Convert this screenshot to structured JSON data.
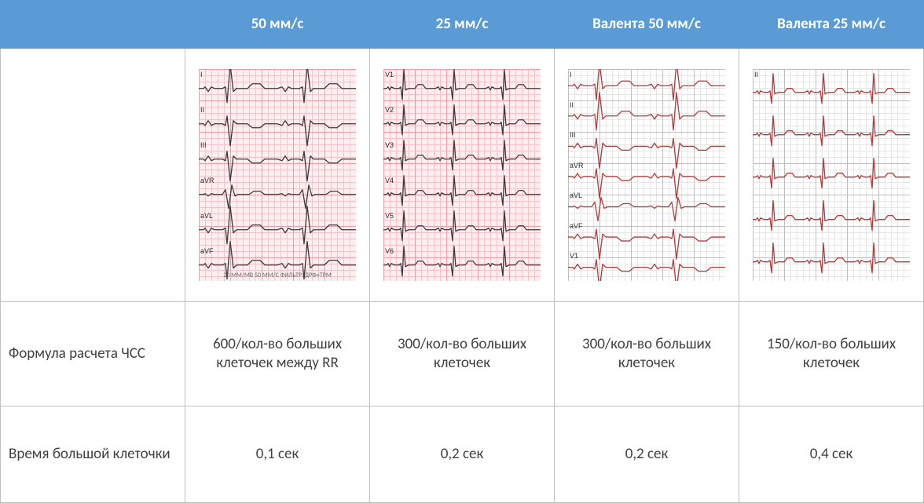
{
  "table": {
    "header": [
      "",
      "50 мм/с",
      "25 мм/с",
      "Валента 50 мм/с",
      "Валента 25 мм/с"
    ],
    "rows": [
      {
        "label": "Формула расчета ЧСС",
        "cells": [
          "600/кол-во больших клеточек между RR",
          "300/кол-во больших клеточек",
          "300/кол-во больших клеточек",
          "150/кол-во больших клеточек"
        ]
      },
      {
        "label": "Время большой клеточки",
        "cells": [
          "0,1 сек",
          "0,2 сек",
          "0,2 сек",
          "0,4 сек"
        ]
      }
    ]
  },
  "colors": {
    "header_bg": "#5b9bd5",
    "header_fg": "#ffffff",
    "cell_border": "#bfbfbf",
    "text": "#404040",
    "stroke_dark": "#3a3a3a",
    "stroke_red": "#b23b3b"
  },
  "waves": {
    "wide": "0,0 6,0 8,-2 12,4 16,-2 20,0 30,0 34,-2 36,18 40,-30 44,4 48,0 62,0 68,-6 78,-6 84,0 100,0 106,-2 110,4 114,-2 118,0 128,0 132,-2 134,18 138,-30 142,4 146,0 160,0 166,-6 176,-6 182,0 200,0",
    "narrow": "0,0 4,0 6,-2 8,2 10,-2 14,0 20,0 22,-2 24,14 26,-24 28,2 32,0 40,0 44,-5 50,-5 54,0 66,0 70,-2 72,2 74,-2 78,0 84,0 86,-2 88,14 90,-24 92,2 96,0 104,0 108,-5 114,-5 118,0 130,0 134,-2 136,2 138,-2 142,0 148,0 150,-2 152,14 154,-24 156,2 160,0 168,0 172,-5 178,-5 182,0 200,0",
    "wide_inv": "0,0 6,0 8,2 12,-4 16,2 20,0 30,0 34,2 36,-10 40,28 44,-4 48,0 62,0 68,5 78,5 84,0 100,0 106,2 110,-4 114,2 118,0 128,0 132,2 134,-10 138,28 142,-4 146,0 160,0 166,5 176,5 182,0 200,0",
    "wide_bi": "0,0 6,0 8,-1 12,2 16,-1 20,0 30,0 34,-6 38,18 42,-12 46,2 50,0 64,0 70,-4 78,-4 84,0 100,0 106,-1 110,2 114,-1 118,0 128,0 132,-6 136,18 140,-12 144,2 148,0 162,0 168,-4 176,-4 182,0 200,0"
  },
  "ecgs": [
    {
      "grid": "pink",
      "stroke": "#3a3a3a",
      "footer": "20 ММ/МВ   50 ММ/С ФИЛЬТР: ДРФ+ТРМ",
      "leads": [
        {
          "label": "I",
          "wave": "wide",
          "flip": false
        },
        {
          "label": "II",
          "wave": "wide_inv",
          "flip": false
        },
        {
          "label": "III",
          "wave": "wide_inv",
          "flip": false
        },
        {
          "label": "aVR",
          "wave": "wide_bi",
          "flip": false
        },
        {
          "label": "aVL",
          "wave": "wide",
          "flip": false
        },
        {
          "label": "aVF",
          "wave": "wide",
          "flip": false
        }
      ]
    },
    {
      "grid": "pink",
      "stroke": "#3a3a3a",
      "footer": "",
      "leads": [
        {
          "label": "V1",
          "wave": "narrow",
          "flip": false
        },
        {
          "label": "V2",
          "wave": "narrow",
          "flip": false
        },
        {
          "label": "V3",
          "wave": "narrow",
          "flip": false
        },
        {
          "label": "V4",
          "wave": "narrow",
          "flip": false
        },
        {
          "label": "V5",
          "wave": "narrow",
          "flip": false
        },
        {
          "label": "V6",
          "wave": "narrow",
          "flip": false
        }
      ]
    },
    {
      "grid": "white",
      "stroke": "#b23b3b",
      "footer": "",
      "leads": [
        {
          "label": "I",
          "wave": "wide",
          "flip": false
        },
        {
          "label": "II",
          "wave": "wide",
          "flip": false
        },
        {
          "label": "III",
          "wave": "wide_inv",
          "flip": false
        },
        {
          "label": "aVR",
          "wave": "wide_inv",
          "flip": false
        },
        {
          "label": "aVL",
          "wave": "wide_bi",
          "flip": false
        },
        {
          "label": "aVF",
          "wave": "wide_inv",
          "flip": false
        },
        {
          "label": "V1",
          "wave": "wide_inv",
          "flip": false
        }
      ]
    },
    {
      "grid": "white",
      "stroke": "#b23b3b",
      "footer": "",
      "leads": [
        {
          "label": "II",
          "wave": "narrow",
          "flip": false
        },
        {
          "label": "",
          "wave": "narrow",
          "flip": false
        },
        {
          "label": "",
          "wave": "narrow",
          "flip": false
        },
        {
          "label": "",
          "wave": "narrow",
          "flip": false
        },
        {
          "label": "",
          "wave": "narrow",
          "flip": false
        }
      ]
    }
  ]
}
